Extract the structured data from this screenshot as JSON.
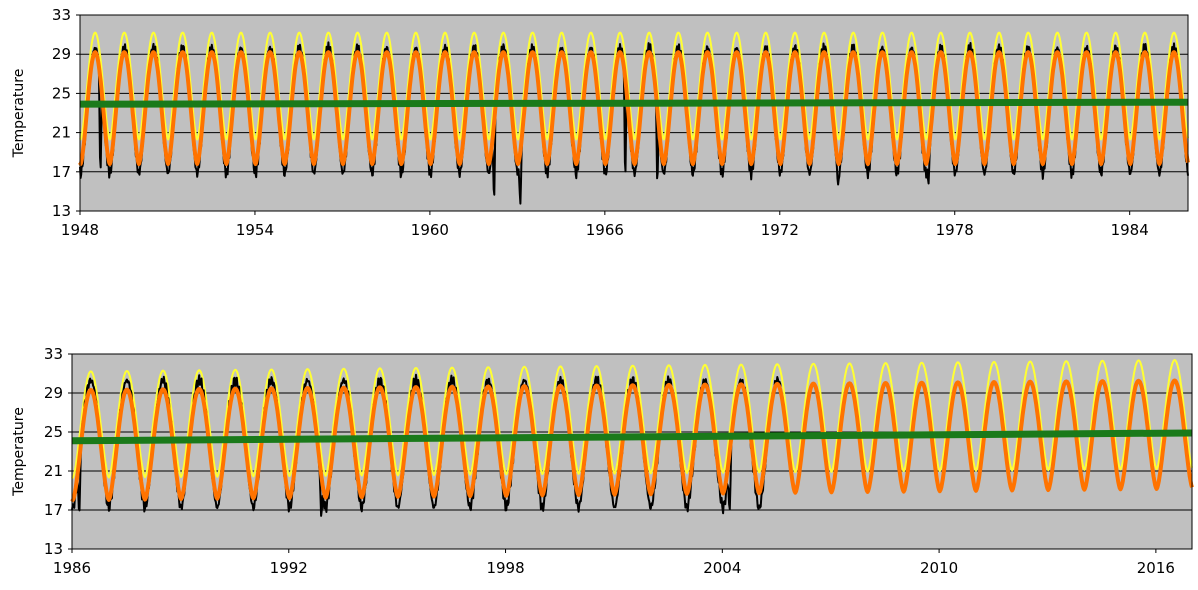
{
  "chart_data": [
    {
      "type": "line",
      "ylabel": "Temperature",
      "xlim": [
        1948,
        1986
      ],
      "ylim": [
        13,
        33
      ],
      "x_ticks": [
        1948,
        1954,
        1960,
        1966,
        1972,
        1978,
        1984
      ],
      "y_ticks": [
        13,
        17,
        21,
        25,
        29,
        33
      ],
      "grid": "horizontal",
      "series": [
        {
          "color": "#ffff33",
          "kind": "seasonal-upper",
          "min": 20.3,
          "max": 31.2
        },
        {
          "color": "#000000",
          "kind": "observed",
          "min": 16.8,
          "max": 29.6,
          "dips": [
            [
              1948.7,
              15.6
            ],
            [
              1962.2,
              13.2
            ],
            [
              1963.1,
              13.3
            ],
            [
              1966.7,
              15.2
            ],
            [
              1967.8,
              15.0
            ],
            [
              1974.0,
              15.7
            ],
            [
              1977.1,
              15.6
            ]
          ]
        },
        {
          "color": "#ff7300",
          "kind": "seasonal-mean",
          "min": 17.8,
          "max": 29.2
        },
        {
          "color": "#1a7a1a",
          "kind": "trend",
          "y_start": 23.9,
          "y_end": 24.1
        }
      ]
    },
    {
      "type": "line",
      "ylabel": "Temperature",
      "xlim": [
        1986,
        2017
      ],
      "ylim": [
        13,
        33
      ],
      "x_ticks": [
        1986,
        1992,
        1998,
        2004,
        2010,
        2016
      ],
      "y_ticks": [
        13,
        17,
        21,
        25,
        29,
        33
      ],
      "grid": "horizontal",
      "series": [
        {
          "color": "#ffff33",
          "kind": "seasonal-upper",
          "min_start": 20.3,
          "min_end": 21.2,
          "max_start": 31.2,
          "max_end": 32.4
        },
        {
          "color": "#000000",
          "kind": "observed",
          "min": 17.2,
          "max": 30.3,
          "x_end": 2005.7,
          "dips": [
            [
              1986.2,
              15.9
            ],
            [
              1992.9,
              16.1
            ],
            [
              2004.2,
              16.1
            ],
            [
              2005.0,
              17.3
            ]
          ]
        },
        {
          "color": "#ff7300",
          "kind": "seasonal-mean",
          "min_start": 18.0,
          "min_end": 19.2,
          "max_start": 29.3,
          "max_end": 30.3
        },
        {
          "color": "#1a7a1a",
          "kind": "trend",
          "y_start": 24.1,
          "y_end": 24.9
        }
      ]
    }
  ]
}
